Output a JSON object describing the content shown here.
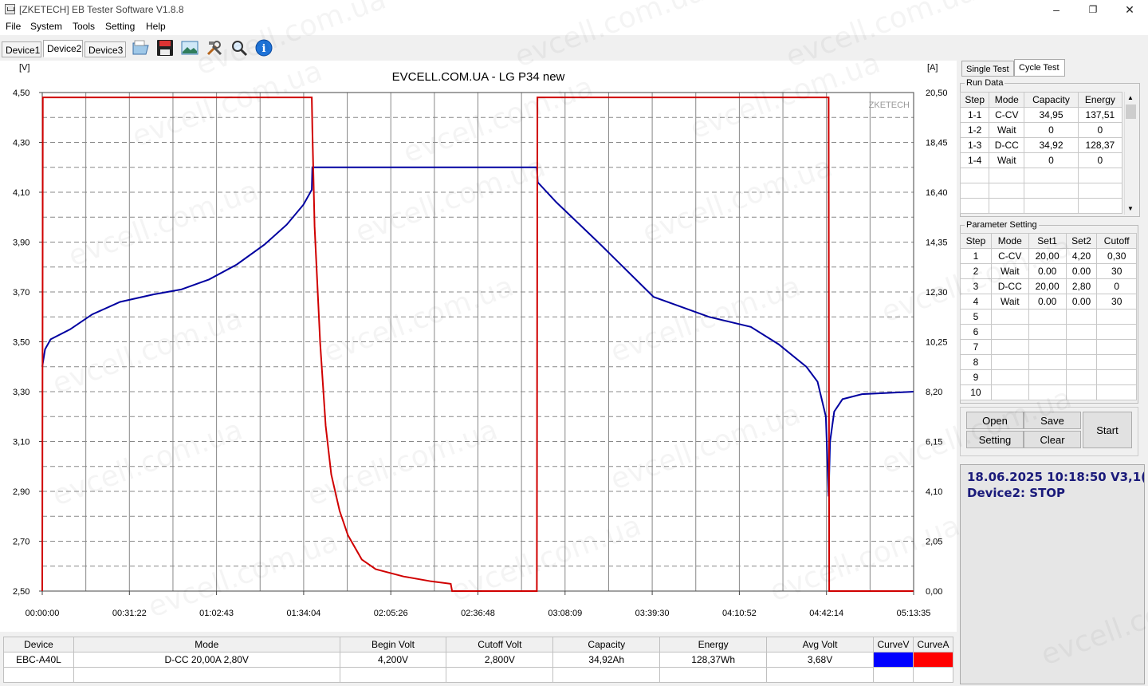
{
  "window": {
    "title": "[ZKETECH] EB Tester Software V1.8.8",
    "minimize": "–",
    "maximize": "❐",
    "close": "✕"
  },
  "menu": [
    "File",
    "System",
    "Tools",
    "Setting",
    "Help"
  ],
  "device_tabs": [
    "Device1",
    "Device2",
    "Device3"
  ],
  "toolbar_icons": [
    "open-folder-icon",
    "save-icon",
    "image-icon",
    "tools-icon",
    "search-icon",
    "info-icon"
  ],
  "chart_data": {
    "type": "line",
    "title": "EVCELL.COM.UA - LG P34 new",
    "watermark": "ZKETECH",
    "y_left_unit": "[V]",
    "y_right_unit": "[A]",
    "y_left_ticks": [
      "4,50",
      "4,30",
      "4,10",
      "3,90",
      "3,70",
      "3,50",
      "3,30",
      "3,10",
      "2,90",
      "2,70",
      "2,50"
    ],
    "y_right_ticks": [
      "20,50",
      "18,45",
      "16,40",
      "14,35",
      "12,30",
      "10,25",
      "8,20",
      "6,15",
      "4,10",
      "2,05",
      "0,00"
    ],
    "x_ticks": [
      "00:00:00",
      "00:31:22",
      "01:02:43",
      "01:34:04",
      "02:05:26",
      "02:36:48",
      "03:08:09",
      "03:39:30",
      "04:10:52",
      "04:42:14",
      "05:13:35"
    ],
    "ylim_left": [
      2.5,
      4.5
    ],
    "ylim_right": [
      0,
      20.5
    ],
    "xlim_minutes": [
      0,
      313.58
    ],
    "series": [
      {
        "name": "CurveV",
        "axis": "left",
        "color": "#0000a0",
        "points": [
          [
            0,
            3.4
          ],
          [
            1,
            3.47
          ],
          [
            3,
            3.51
          ],
          [
            10,
            3.55
          ],
          [
            18,
            3.61
          ],
          [
            28,
            3.66
          ],
          [
            40,
            3.69
          ],
          [
            50,
            3.71
          ],
          [
            60,
            3.75
          ],
          [
            70,
            3.81
          ],
          [
            80,
            3.89
          ],
          [
            88,
            3.97
          ],
          [
            94,
            4.05
          ],
          [
            97,
            4.11
          ],
          [
            97.2,
            4.2
          ],
          [
            178,
            4.2
          ],
          [
            178.3,
            4.14
          ],
          [
            185,
            4.06
          ],
          [
            200,
            3.9
          ],
          [
            220,
            3.68
          ],
          [
            240,
            3.6
          ],
          [
            255,
            3.56
          ],
          [
            265,
            3.49
          ],
          [
            275,
            3.4
          ],
          [
            279,
            3.34
          ],
          [
            282,
            3.2
          ],
          [
            283,
            2.88
          ],
          [
            283.5,
            3.1
          ],
          [
            285,
            3.22
          ],
          [
            288,
            3.27
          ],
          [
            295,
            3.29
          ],
          [
            313.5,
            3.3
          ]
        ]
      },
      {
        "name": "CurveA",
        "axis": "right",
        "color": "#d00000",
        "points": [
          [
            0,
            0
          ],
          [
            0.2,
            20.3
          ],
          [
            97,
            20.3
          ],
          [
            97.2,
            19.0
          ],
          [
            98,
            15.0
          ],
          [
            100,
            10.2
          ],
          [
            102,
            6.8
          ],
          [
            104,
            4.8
          ],
          [
            107,
            3.3
          ],
          [
            110,
            2.3
          ],
          [
            115,
            1.3
          ],
          [
            120,
            0.9
          ],
          [
            130,
            0.6
          ],
          [
            140,
            0.4
          ],
          [
            147,
            0.3
          ],
          [
            147.5,
            0
          ],
          [
            178,
            0
          ],
          [
            178.2,
            20.3
          ],
          [
            283,
            20.3
          ],
          [
            283.2,
            0
          ],
          [
            313.5,
            0
          ]
        ]
      }
    ]
  },
  "right_panel": {
    "tabs": [
      "Single Test",
      "Cycle Test"
    ],
    "run_data": {
      "label": "Run Data",
      "headers": [
        "Step",
        "Mode",
        "Capacity",
        "Energy"
      ],
      "rows": [
        [
          "1-1",
          "C-CV",
          "34,95",
          "137,51"
        ],
        [
          "1-2",
          "Wait",
          "0",
          "0"
        ],
        [
          "1-3",
          "D-CC",
          "34,92",
          "128,37"
        ],
        [
          "1-4",
          "Wait",
          "0",
          "0"
        ]
      ]
    },
    "param": {
      "label": "Parameter Setting",
      "headers": [
        "Step",
        "Mode",
        "Set1",
        "Set2",
        "Cutoff"
      ],
      "rows": [
        [
          "1",
          "C-CV",
          "20,00",
          "4,20",
          "0,30"
        ],
        [
          "2",
          "Wait",
          "0.00",
          "0.00",
          "30"
        ],
        [
          "3",
          "D-CC",
          "20,00",
          "2,80",
          "0"
        ],
        [
          "4",
          "Wait",
          "0.00",
          "0.00",
          "30"
        ],
        [
          "5",
          "",
          "",
          "",
          ""
        ],
        [
          "6",
          "",
          "",
          "",
          ""
        ],
        [
          "7",
          "",
          "",
          "",
          ""
        ],
        [
          "8",
          "",
          "",
          "",
          ""
        ],
        [
          "9",
          "",
          "",
          "",
          ""
        ],
        [
          "10",
          "",
          "",
          "",
          ""
        ]
      ]
    },
    "buttons": {
      "open": "Open",
      "save": "Save",
      "setting": "Setting",
      "clear": "Clear",
      "start": "Start"
    },
    "status": {
      "datetime": "18.06.2025 10:18:50  V3,1(",
      "device": "Device2: STOP"
    }
  },
  "bottom_table": {
    "headers": [
      "Device",
      "Mode",
      "Begin Volt",
      "Cutoff Volt",
      "Capacity",
      "Energy",
      "Avg Volt",
      "CurveV",
      "CurveA"
    ],
    "row": [
      "EBC-A40L",
      "D-CC  20,00A  2,80V",
      "4,200V",
      "2,800V",
      "34,92Ah",
      "128,37Wh",
      "3,68V"
    ],
    "curve_colors": {
      "v": "#0000ff",
      "a": "#ff0000"
    }
  },
  "site_watermark": "evcell.com.ua"
}
